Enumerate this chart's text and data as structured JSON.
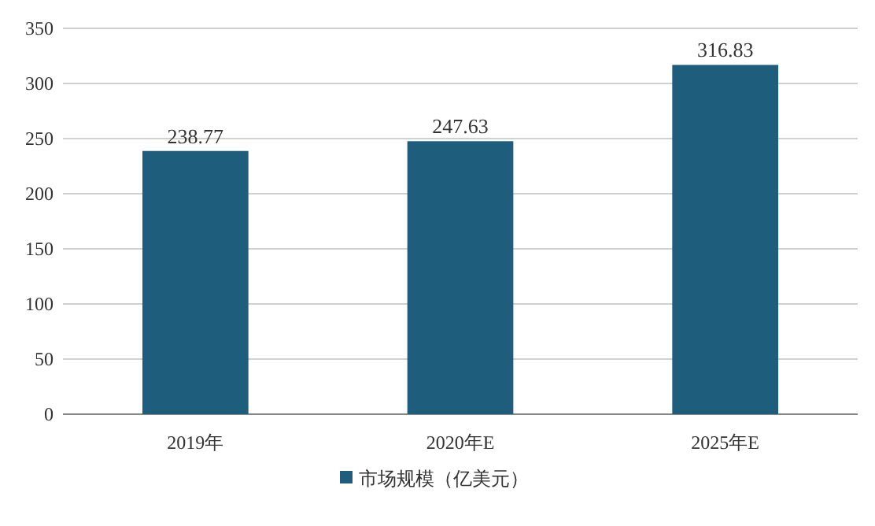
{
  "chart_data": {
    "type": "bar",
    "categories": [
      "2019年",
      "2020年E",
      "2025年E"
    ],
    "series": [
      {
        "name": "市场规模（亿美元）",
        "color": "#1f5d7c",
        "values": [
          238.77,
          247.63,
          316.83
        ]
      }
    ],
    "ylim": [
      0,
      350
    ],
    "yticks": [
      0,
      50,
      100,
      150,
      200,
      250,
      300,
      350
    ],
    "grid": "y",
    "legend": "bottom",
    "data_labels": true
  }
}
